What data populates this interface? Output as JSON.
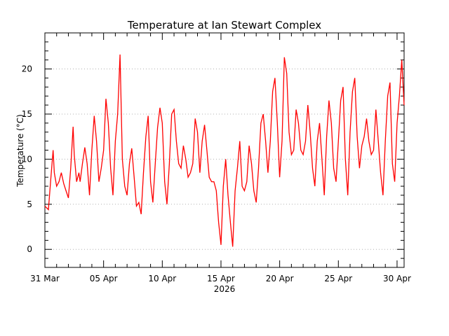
{
  "chart_data": {
    "type": "line",
    "title": "Temperature at Ian Stewart Complex",
    "ylabel": "Temperature (°C)",
    "xlabel": "2026",
    "x_range_days": [
      0,
      30.6
    ],
    "ylim": [
      -2,
      24
    ],
    "y_ticks": [
      0,
      5,
      10,
      15,
      20
    ],
    "x_ticks": [
      {
        "day": 0,
        "label": "31 Mar"
      },
      {
        "day": 5,
        "label": "05 Apr"
      },
      {
        "day": 10,
        "label": "10 Apr"
      },
      {
        "day": 15,
        "label": "15 Apr"
      },
      {
        "day": 20,
        "label": "20 Apr"
      },
      {
        "day": 25,
        "label": "25 Apr"
      },
      {
        "day": 30,
        "label": "30 Apr"
      }
    ],
    "grid": "horizontal dotted",
    "line_color": "#ff0000",
    "series": [
      {
        "name": "",
        "x_day": [
          0.0,
          0.3,
          0.5,
          0.7,
          0.8,
          1.0,
          1.2,
          1.4,
          1.6,
          1.8,
          2.0,
          2.2,
          2.4,
          2.5,
          2.7,
          2.9,
          3.0,
          3.2,
          3.4,
          3.6,
          3.8,
          4.0,
          4.2,
          4.4,
          4.6,
          4.8,
          5.0,
          5.2,
          5.4,
          5.6,
          5.8,
          6.0,
          6.2,
          6.4,
          6.6,
          6.8,
          7.0,
          7.2,
          7.4,
          7.6,
          7.8,
          8.0,
          8.2,
          8.4,
          8.6,
          8.8,
          9.0,
          9.2,
          9.4,
          9.6,
          9.8,
          10.0,
          10.2,
          10.4,
          10.6,
          10.8,
          11.0,
          11.2,
          11.4,
          11.6,
          11.8,
          12.0,
          12.2,
          12.4,
          12.6,
          12.8,
          13.0,
          13.2,
          13.4,
          13.6,
          13.8,
          14.0,
          14.2,
          14.4,
          14.6,
          14.8,
          15.0,
          15.2,
          15.4,
          15.6,
          15.8,
          16.0,
          16.2,
          16.4,
          16.6,
          16.8,
          17.0,
          17.2,
          17.4,
          17.6,
          17.8,
          18.0,
          18.2,
          18.4,
          18.6,
          18.8,
          19.0,
          19.2,
          19.4,
          19.6,
          19.8,
          20.0,
          20.2,
          20.4,
          20.6,
          20.8,
          21.0,
          21.2,
          21.4,
          21.6,
          21.8,
          22.0,
          22.2,
          22.4,
          22.6,
          22.8,
          23.0,
          23.2,
          23.4,
          23.6,
          23.8,
          24.0,
          24.2,
          24.4,
          24.6,
          24.8,
          25.0,
          25.2,
          25.4,
          25.6,
          25.8,
          26.0,
          26.2,
          26.4,
          26.6,
          26.8,
          27.0,
          27.2,
          27.4,
          27.6,
          27.8,
          28.0,
          28.2,
          28.4,
          28.6,
          28.8,
          29.0,
          29.2,
          29.4,
          29.6,
          29.8,
          30.0,
          30.2,
          30.4,
          30.6
        ],
        "values": [
          4.8,
          4.4,
          7.8,
          11.0,
          8.5,
          7.0,
          7.5,
          8.5,
          7.3,
          6.5,
          5.7,
          9.0,
          13.6,
          10.5,
          7.5,
          8.5,
          7.5,
          9.5,
          11.3,
          9.5,
          6.0,
          11.0,
          14.8,
          12.0,
          7.5,
          9.0,
          11.0,
          16.7,
          14.0,
          9.0,
          6.0,
          12.0,
          15.0,
          21.6,
          10.0,
          7.0,
          6.0,
          9.5,
          11.2,
          8.0,
          4.8,
          5.2,
          3.9,
          8.5,
          12.5,
          14.8,
          7.5,
          5.2,
          9.5,
          13.5,
          15.7,
          14.0,
          7.5,
          5.0,
          9.5,
          15.0,
          15.5,
          12.0,
          9.5,
          9.0,
          11.5,
          10.0,
          8.0,
          8.5,
          9.5,
          14.5,
          13.0,
          8.5,
          12.0,
          13.8,
          11.0,
          8.0,
          7.5,
          7.5,
          6.5,
          3.0,
          0.5,
          7.0,
          10.0,
          6.0,
          3.0,
          0.3,
          6.5,
          9.0,
          12.0,
          7.0,
          6.5,
          7.5,
          11.5,
          9.5,
          6.5,
          5.2,
          9.0,
          14.0,
          15.0,
          12.0,
          8.5,
          12.0,
          17.5,
          19.0,
          14.0,
          8.0,
          12.0,
          21.3,
          19.5,
          13.0,
          10.5,
          11.0,
          15.5,
          14.0,
          11.0,
          10.5,
          12.0,
          16.0,
          13.0,
          9.0,
          7.0,
          12.0,
          14.0,
          10.0,
          6.0,
          12.5,
          16.5,
          14.0,
          9.0,
          7.5,
          12.0,
          16.5,
          18.0,
          10.0,
          6.0,
          13.0,
          17.5,
          19.0,
          12.5,
          9.0,
          11.5,
          12.5,
          14.5,
          12.0,
          10.5,
          11.0,
          15.5,
          12.0,
          8.5,
          6.0,
          12.0,
          17.0,
          18.5,
          9.5,
          7.5,
          14.0,
          17.0,
          21.0,
          16.0
        ]
      }
    ]
  }
}
